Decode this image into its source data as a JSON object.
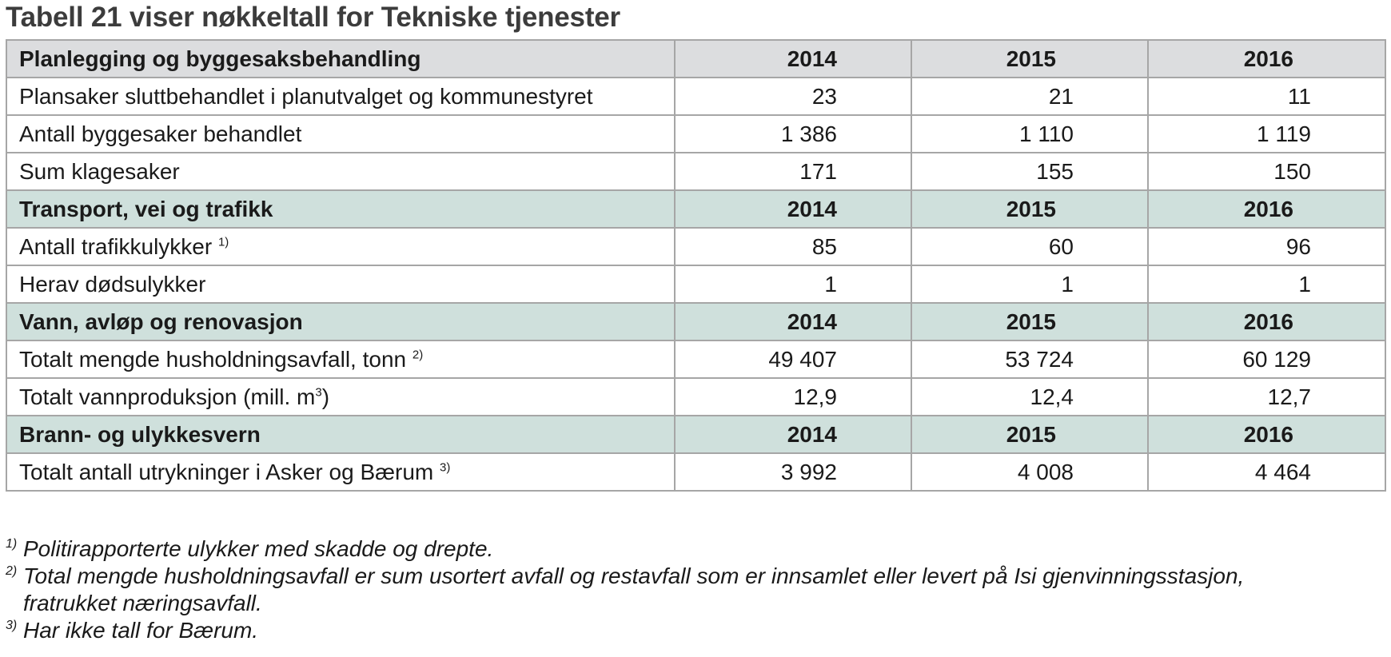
{
  "title": "Tabell 21 viser nøkkeltall for Tekniske tjenester",
  "sections": [
    {
      "heading": "Planlegging og byggesaksbehandling",
      "years": [
        "2014",
        "2015",
        "2016"
      ],
      "rows": [
        {
          "label": "Plansaker sluttbehandlet i planutvalget og kommunestyret",
          "note": "",
          "values": [
            "23",
            "21",
            "11"
          ]
        },
        {
          "label": "Antall byggesaker behandlet",
          "note": "",
          "values": [
            "1 386",
            "1 110",
            "1 119"
          ]
        },
        {
          "label": "Sum klagesaker",
          "note": "",
          "values": [
            "171",
            "155",
            "150"
          ]
        }
      ]
    },
    {
      "heading": "Transport, vei og trafikk",
      "years": [
        "2014",
        "2015",
        "2016"
      ],
      "rows": [
        {
          "label": "Antall trafikkulykker",
          "note": "1)",
          "values": [
            "85",
            "60",
            "96"
          ]
        },
        {
          "label": "Herav dødsulykker",
          "note": "",
          "values": [
            "1",
            "1",
            "1"
          ]
        }
      ]
    },
    {
      "heading": "Vann, avløp og renovasjon",
      "years": [
        "2014",
        "2015",
        "2016"
      ],
      "rows": [
        {
          "label": "Totalt mengde husholdningsavfall, tonn",
          "note": "2)",
          "values": [
            "49 407",
            "53 724",
            "60 129"
          ]
        },
        {
          "label_pre": "Totalt vannproduksjon (mill. m",
          "label_sup": "3",
          "label_post": ")",
          "values": [
            "12,9",
            "12,4",
            "12,7"
          ]
        }
      ]
    },
    {
      "heading": "Brann- og ulykkesvern",
      "years": [
        "2014",
        "2015",
        "2016"
      ],
      "rows": [
        {
          "label": "Totalt antall utrykninger i Asker og Bærum",
          "note": "3)",
          "values": [
            "3 992",
            "4 008",
            "4 464"
          ]
        }
      ]
    }
  ],
  "footnotes": [
    {
      "mark": "1)",
      "text": "Politirapporterte ulykker med skadde og drepte."
    },
    {
      "mark": "2)",
      "text": "Total mengde husholdningsavfall er sum usortert avfall og restavfall som er innsamlet eller levert på Isi gjenvinningsstasjon,",
      "text2": "fratrukket næringsavfall."
    },
    {
      "mark": "3)",
      "text": "Har ikke tall for Bærum."
    }
  ],
  "colors": {
    "header_grey": "#dcdddf",
    "header_green": "#cfe0dc",
    "border": "#a6a6a6",
    "title": "#3c3c3c"
  }
}
